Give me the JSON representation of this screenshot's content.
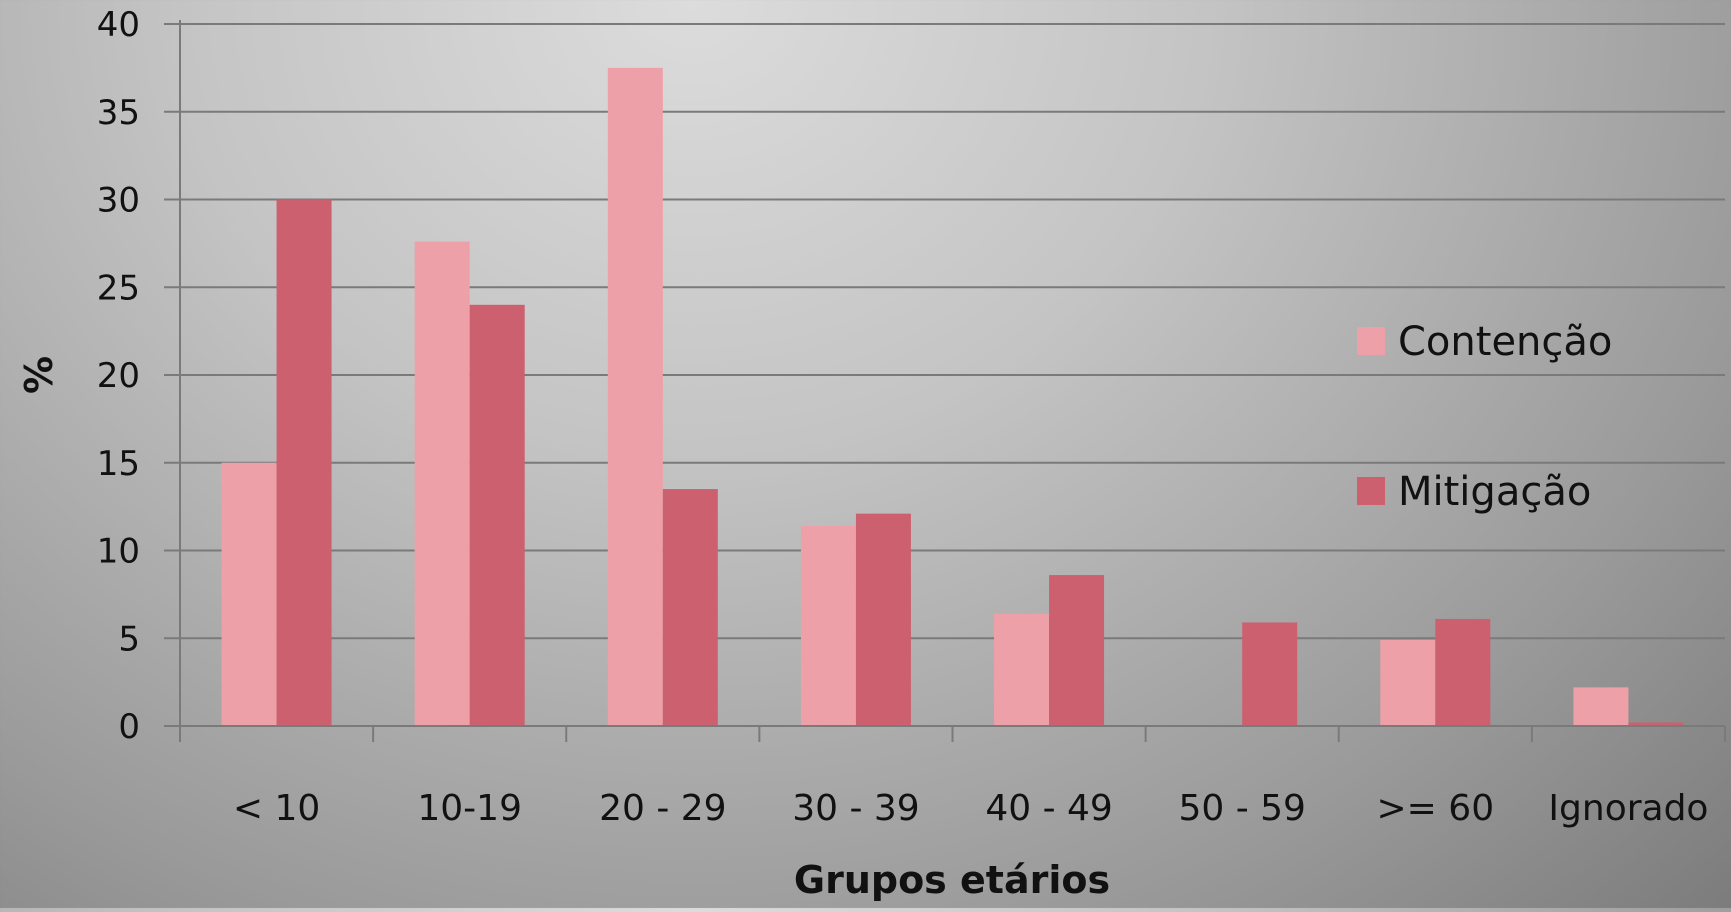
{
  "chart_data": {
    "type": "bar",
    "title": "",
    "xlabel": "Grupos etários",
    "ylabel": "%",
    "ylim": [
      0,
      40
    ],
    "yticks": [
      "0",
      "5",
      "10",
      "15",
      "20",
      "25",
      "30",
      "35",
      "40"
    ],
    "categories": [
      "< 10",
      "10-19",
      "20 - 29",
      "30 - 39",
      "40 - 49",
      "50 - 59",
      ">= 60",
      "Ignorado"
    ],
    "series": [
      {
        "name": "Contenção",
        "color": "#eea0a8",
        "values": [
          15,
          27.6,
          37.5,
          11.4,
          6.4,
          0,
          4.9,
          2.2
        ]
      },
      {
        "name": "Mitigação",
        "color": "#cc606e",
        "values": [
          30,
          24,
          13.5,
          12.1,
          8.6,
          5.9,
          6.1,
          0.2
        ]
      }
    ],
    "grid": true,
    "legend_position": "right"
  }
}
